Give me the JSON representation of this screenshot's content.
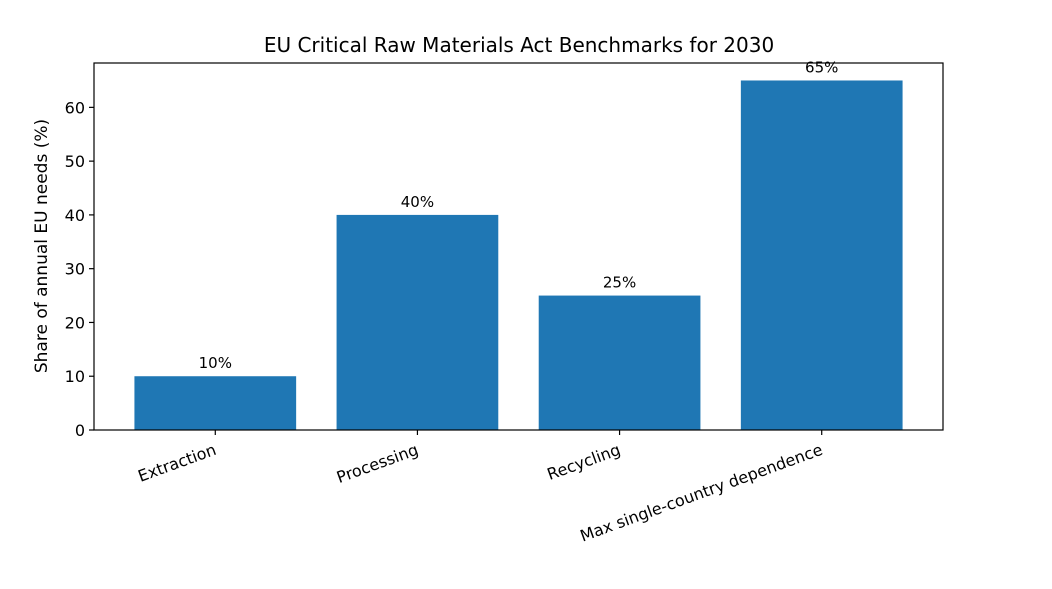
{
  "chart_data": {
    "type": "bar",
    "title": "EU Critical Raw Materials Act Benchmarks for 2030",
    "xlabel": "",
    "ylabel": "Share of annual EU needs (%)",
    "categories": [
      "Extraction",
      "Processing",
      "Recycling",
      "Max single-country dependence"
    ],
    "values": [
      10,
      40,
      25,
      65
    ],
    "data_labels": [
      "10%",
      "40%",
      "25%",
      "65%"
    ],
    "yticks": [
      0,
      10,
      20,
      30,
      40,
      50,
      60
    ],
    "ylim": [
      0,
      68.25
    ],
    "grid": false,
    "bar_color": "#1f77b4"
  }
}
